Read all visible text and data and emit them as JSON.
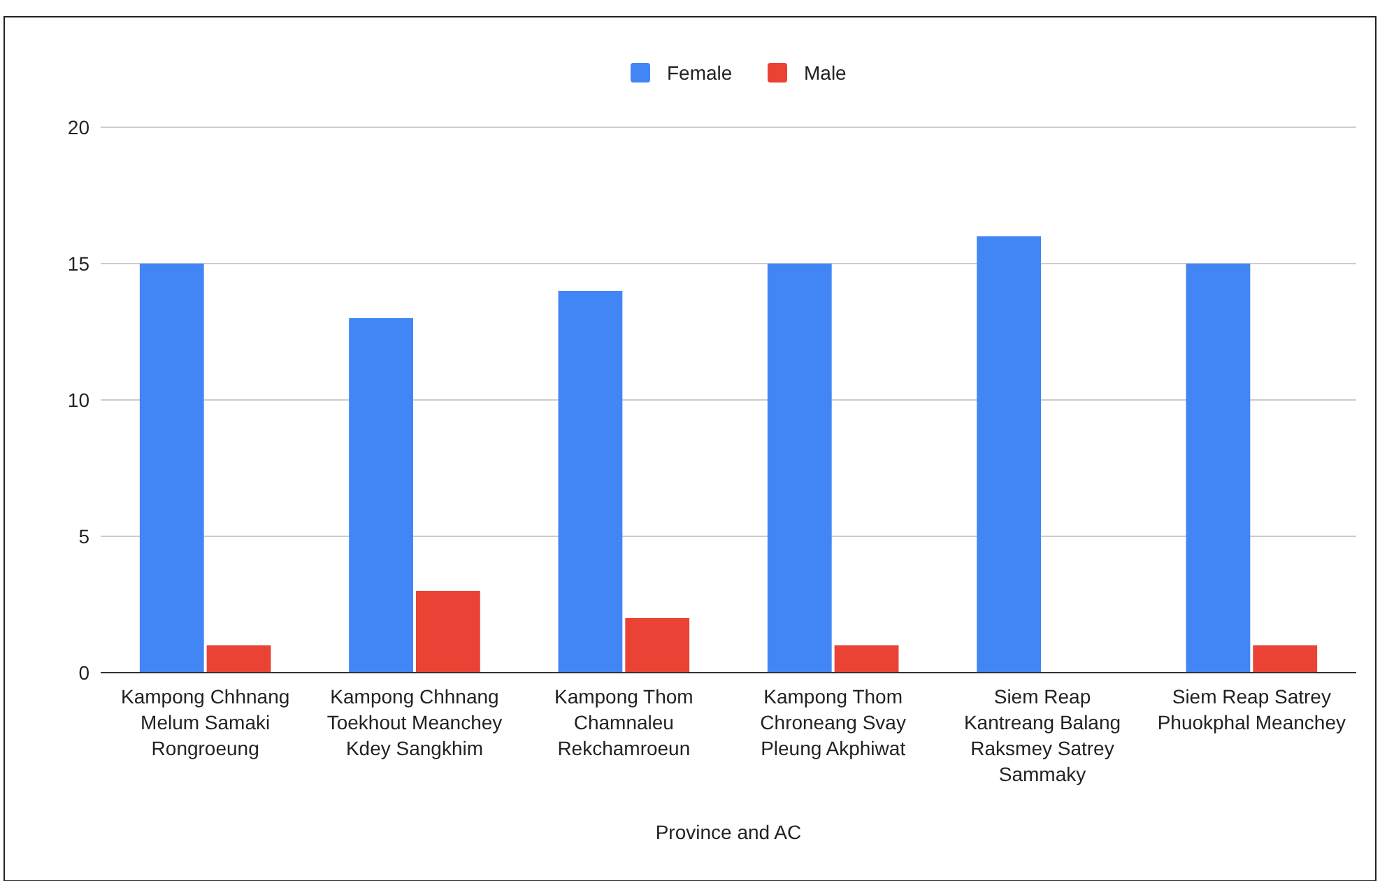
{
  "chart_data": {
    "type": "bar",
    "xlabel": "Province and AC",
    "categories": [
      "Kampong Chhnang Melum Samaki Rongroeung",
      "Kampong Chhnang Toekhout Meanchey Kdey Sangkhim",
      "Kampong Thom Chamnaleu Rekchamroeun",
      "Kampong Thom Chroneang Svay Pleung Akphiwat",
      "Siem Reap Kantreang Balang Raksmey Satrey Sammaky",
      "Siem Reap Satrey Phuokphal Meanchey"
    ],
    "series": [
      {
        "name": "Female",
        "color": "#4285f4",
        "values": [
          15,
          13,
          14,
          15,
          16,
          15
        ]
      },
      {
        "name": "Male",
        "color": "#ea4335",
        "values": [
          1,
          3,
          2,
          1,
          0,
          1
        ]
      }
    ],
    "ylim": [
      0,
      20
    ],
    "yticks": [
      0,
      5,
      10,
      15,
      20
    ],
    "grid": "y",
    "legend": "top"
  }
}
